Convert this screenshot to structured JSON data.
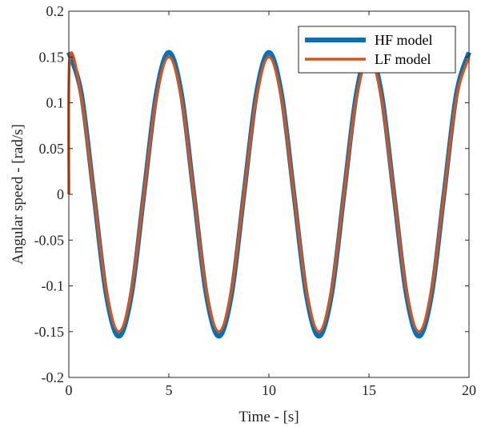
{
  "chart_data": {
    "type": "line",
    "title": "",
    "xlabel": "Time - [s]",
    "ylabel": "Angular speed - [rad/s]",
    "xlim": [
      0,
      20
    ],
    "ylim": [
      -0.2,
      0.2
    ],
    "xticks": [
      0,
      5,
      10,
      15,
      20
    ],
    "xtick_labels": [
      "0",
      "5",
      "10",
      "15",
      "20"
    ],
    "yticks": [
      -0.2,
      -0.15,
      -0.1,
      -0.05,
      0,
      0.05,
      0.1,
      0.15,
      0.2
    ],
    "ytick_labels": [
      "-0.2",
      "-0.15",
      "-0.1",
      "-0.05",
      "0",
      "0.05",
      "0.1",
      "0.15",
      "0.2"
    ],
    "grid": false,
    "box": true,
    "legend_position": "top-right",
    "series": [
      {
        "name": "HF model",
        "color": "#0072BD",
        "x": [
          0,
          0.625,
          1.25,
          1.875,
          2.5,
          3.125,
          3.75,
          4.375,
          5,
          5.625,
          6.25,
          6.875,
          7.5,
          8.125,
          8.75,
          9.375,
          10,
          10.625,
          11.25,
          11.875,
          12.5,
          13.125,
          13.75,
          14.375,
          15,
          15.625,
          16.25,
          16.875,
          17.5,
          18.125,
          18.75,
          19.375,
          20
        ],
        "y": [
          0.155,
          0.11,
          0,
          -0.11,
          -0.155,
          -0.11,
          0,
          0.11,
          0.155,
          0.11,
          0,
          -0.11,
          -0.155,
          -0.11,
          0,
          0.11,
          0.155,
          0.11,
          0,
          -0.11,
          -0.155,
          -0.11,
          0,
          0.11,
          0.155,
          0.11,
          0,
          -0.11,
          -0.155,
          -0.11,
          0,
          0.11,
          0.155
        ]
      },
      {
        "name": "LF model",
        "color": "#D95319",
        "x": [
          0,
          0.05,
          0.625,
          1.25,
          1.875,
          2.5,
          3.125,
          3.75,
          4.375,
          5,
          5.625,
          6.25,
          6.875,
          7.5,
          8.125,
          8.75,
          9.375,
          10,
          10.625,
          11.25,
          11.875,
          12.5,
          13.125,
          13.75,
          14.375,
          15,
          15.625,
          16.25,
          16.875,
          17.5,
          18.125,
          18.75,
          19.375,
          20
        ],
        "y": [
          0,
          0.15,
          0.106,
          0,
          -0.106,
          -0.15,
          -0.106,
          0,
          0.106,
          0.15,
          0.106,
          0,
          -0.106,
          -0.15,
          -0.106,
          0,
          0.106,
          0.15,
          0.106,
          0,
          -0.106,
          -0.15,
          -0.106,
          0,
          0.106,
          0.15,
          0.106,
          0,
          -0.106,
          -0.15,
          -0.106,
          0,
          0.106,
          0.15
        ]
      }
    ]
  }
}
